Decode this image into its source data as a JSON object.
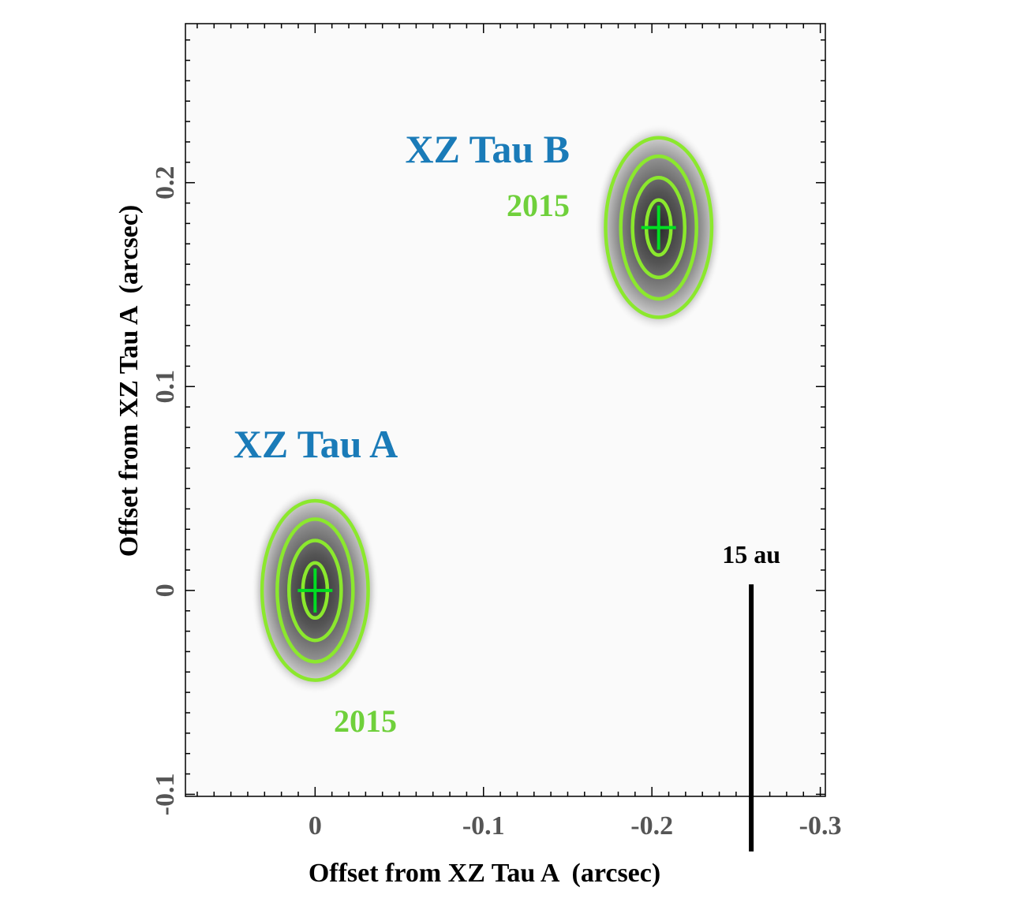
{
  "chart_data": {
    "type": "scatter",
    "title": "",
    "xlabel": "Offset from XZ Tau A  (arcsec)",
    "ylabel": "Offset from XZ Tau A  (arcsec)",
    "xlim": [
      0.077,
      -0.303
    ],
    "ylim": [
      -0.101,
      0.278
    ],
    "x_ticks": [
      0,
      -0.1,
      -0.2,
      -0.3
    ],
    "x_tick_labels": [
      "0",
      "-0.1",
      "-0.2",
      "-0.3"
    ],
    "y_ticks": [
      -0.1,
      0,
      0.1,
      0.2
    ],
    "y_tick_labels": [
      "-0.1",
      "0",
      "0.1",
      "0.2"
    ],
    "grid": false,
    "sources": [
      {
        "name": "XZ Tau A",
        "epoch": "2015",
        "x": 0.0,
        "y": 0.0,
        "contour_semi_axes_arcsec": [
          [
            0.0073,
            0.0135
          ],
          [
            0.0155,
            0.0245
          ],
          [
            0.0225,
            0.035
          ],
          [
            0.0315,
            0.044
          ]
        ],
        "emission_semi_axes_arcsec": [
          0.038,
          0.051
        ]
      },
      {
        "name": "XZ Tau B",
        "epoch": "2015",
        "x": -0.204,
        "y": 0.178,
        "contour_semi_axes_arcsec": [
          [
            0.0073,
            0.0135
          ],
          [
            0.0155,
            0.0245
          ],
          [
            0.0225,
            0.035
          ],
          [
            0.0315,
            0.044
          ]
        ],
        "emission_semi_axes_arcsec": [
          0.038,
          0.051
        ]
      }
    ],
    "scale_bar": {
      "label": "15 au",
      "length_arcsec": 0.131,
      "x": -0.259,
      "y_top": 0.003
    },
    "colors": {
      "source_label": "#1a7bb8",
      "epoch_label": "#6fd03b",
      "contour": "#8be82d",
      "marker": "#00dd22",
      "scale_bar": "#000000"
    }
  }
}
